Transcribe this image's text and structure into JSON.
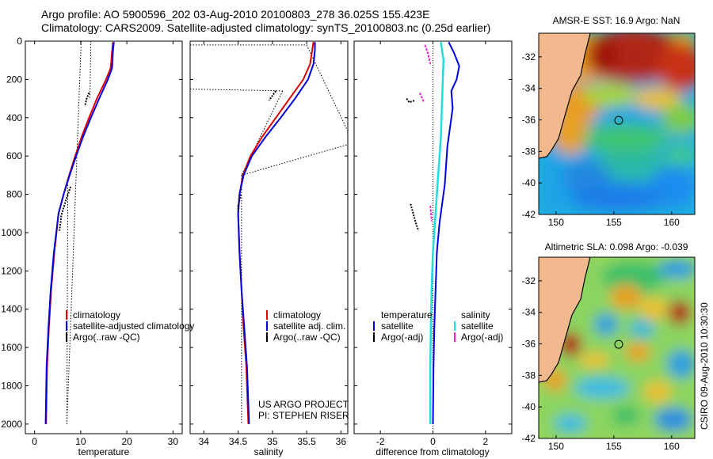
{
  "header": {
    "line1": "Argo profile: AO 5900596_202 03-Aug-2010 20100803_278 36.025S 155.423E",
    "line2": "Climatology: CARS2009. Satellite-adjusted climatology: synTS_20100803.nc (0.25d earlier)"
  },
  "colors": {
    "climatology": "#e00000",
    "satellite": "#0000dd",
    "argo": "#000000",
    "satellite_salinity": "#22dddd",
    "argo_salinity": "#ee22cc"
  },
  "chart_data": [
    {
      "type": "line",
      "id": "temperature",
      "xlabel": "temperature",
      "ylim": [
        2050,
        0
      ],
      "xlim": [
        -2,
        32
      ],
      "xticks": [
        0,
        10,
        20,
        30
      ],
      "yticks": [
        0,
        200,
        400,
        600,
        800,
        1000,
        1200,
        1400,
        1600,
        1800,
        2000
      ],
      "legend": [
        "climatology",
        "satellite-adjusted climatology",
        "Argo(..raw -QC)"
      ],
      "series": [
        {
          "name": "climatology",
          "x": [
            17.0,
            16.8,
            16.5,
            15.5,
            13.5,
            11.8,
            10.2,
            8.8,
            7.5,
            6.3,
            5.2,
            4.3,
            3.6,
            3.1,
            2.7,
            2.5
          ],
          "y": [
            5,
            50,
            140,
            200,
            300,
            400,
            500,
            600,
            700,
            800,
            900,
            1100,
            1300,
            1500,
            1700,
            2000
          ]
        },
        {
          "name": "satellite-adjusted climatology",
          "x": [
            17.2,
            17.0,
            16.8,
            15.9,
            14.0,
            12.2,
            10.5,
            9.0,
            7.6,
            6.3,
            5.2,
            4.2,
            3.5,
            3.0,
            2.6,
            2.4
          ],
          "y": [
            5,
            50,
            140,
            200,
            300,
            400,
            500,
            600,
            700,
            800,
            900,
            1100,
            1300,
            1500,
            1700,
            2000
          ]
        },
        {
          "name": "Argo(..raw -QC)",
          "x": [
            11.8,
            11.3,
            10.9
          ],
          "y": [
            270,
            300,
            340
          ]
        },
        {
          "name": "Argo(..raw -QC)",
          "x": [
            7.8,
            7.4,
            6.8,
            6.3,
            5.8,
            5.6,
            5.4
          ],
          "y": [
            760,
            790,
            830,
            870,
            910,
            950,
            990
          ]
        }
      ]
    },
    {
      "type": "line",
      "id": "salinity",
      "xlabel": "salinity",
      "ylim": [
        2050,
        0
      ],
      "xlim": [
        33.8,
        36.1
      ],
      "xticks": [
        34,
        34.5,
        35,
        35.5,
        36
      ],
      "legend": [
        "climatology",
        "satellite adj. clim.",
        "Argo(..raw -QC)"
      ],
      "annotation": [
        "US ARGO PROJECT",
        "PI: STEPHEN RISER"
      ],
      "series": [
        {
          "name": "climatology",
          "x": [
            35.6,
            35.58,
            35.55,
            35.45,
            35.25,
            35.05,
            34.85,
            34.68,
            34.57,
            34.52,
            34.5,
            34.52,
            34.55,
            34.58,
            34.62,
            34.65
          ],
          "y": [
            5,
            50,
            120,
            200,
            300,
            400,
            500,
            600,
            700,
            800,
            900,
            1100,
            1300,
            1500,
            1700,
            2000
          ]
        },
        {
          "name": "satellite adj. clim.",
          "x": [
            35.62,
            35.62,
            35.6,
            35.52,
            35.33,
            35.12,
            34.9,
            34.7,
            34.58,
            34.52,
            34.5,
            34.52,
            34.55,
            34.59,
            34.63,
            34.66
          ],
          "y": [
            5,
            50,
            120,
            200,
            300,
            400,
            500,
            600,
            700,
            800,
            900,
            1100,
            1300,
            1500,
            1700,
            2000
          ]
        },
        {
          "name": "Argo(..raw -QC)",
          "x": [
            35.05,
            35.0,
            34.95
          ],
          "y": [
            260,
            285,
            310
          ]
        },
        {
          "name": "Argo(..raw -QC)",
          "x": [
            34.54,
            34.52,
            34.5,
            34.5
          ],
          "y": [
            800,
            830,
            860,
            890
          ]
        }
      ]
    },
    {
      "type": "line",
      "id": "difference",
      "xlabel": "difference from climatology",
      "ylim": [
        2050,
        0
      ],
      "xlim": [
        -3,
        3
      ],
      "xticks": [
        -2,
        0,
        2
      ],
      "legend_left_title": "temperature",
      "legend_right_title": "salinity",
      "legend": [
        "satellite",
        "Argo(-adj)",
        "satellite",
        "Argo(-adj)"
      ],
      "series": [
        {
          "name": "satellite",
          "x": [
            0.6,
            0.8,
            1.0,
            0.9,
            0.7,
            0.75,
            0.65,
            0.55,
            0.5,
            0.45,
            0.35,
            0.25,
            0.15,
            0.1,
            0.05,
            0.02,
            0.0
          ],
          "y": [
            5,
            60,
            130,
            200,
            260,
            350,
            450,
            550,
            650,
            750,
            850,
            950,
            1100,
            1300,
            1500,
            1700,
            2000
          ]
        },
        {
          "name": "satellite",
          "x": [
            0.3,
            0.4,
            0.35,
            0.3,
            0.2,
            0.1,
            0.0,
            -0.05,
            -0.08,
            -0.1,
            -0.1
          ],
          "y": [
            5,
            100,
            300,
            500,
            700,
            900,
            1100,
            1300,
            1500,
            1700,
            2000
          ]
        },
        {
          "name": "Argo(-adj)",
          "x": [
            -1.0,
            -0.9,
            -0.7
          ],
          "y": [
            300,
            320,
            310
          ]
        },
        {
          "name": "Argo(-adj)",
          "x": [
            -0.85,
            -0.75,
            -0.65,
            -0.55
          ],
          "y": [
            850,
            900,
            950,
            990
          ]
        },
        {
          "name": "Argo(-adj)",
          "x": [
            -0.3,
            -0.2,
            -0.1
          ],
          "y": [
            20,
            60,
            120
          ]
        },
        {
          "name": "Argo(-adj)",
          "x": [
            -0.5,
            -0.4,
            -0.35
          ],
          "y": [
            270,
            300,
            320
          ]
        },
        {
          "name": "Argo(-adj)",
          "x": [
            -0.1,
            -0.05
          ],
          "y": [
            860,
            940
          ]
        }
      ]
    },
    {
      "type": "heatmap",
      "id": "sst-map",
      "title": "AMSR-E SST: 16.9 Argo: NaN",
      "xlim": [
        148.5,
        162
      ],
      "ylim": [
        -42,
        -30.5
      ],
      "xticks": [
        150,
        155,
        160
      ],
      "yticks": [
        -32,
        -34,
        -36,
        -38,
        -40,
        -42
      ],
      "marker": {
        "lon": 155.42,
        "lat": -36.03
      }
    },
    {
      "type": "heatmap",
      "id": "sla-map",
      "title": "Altimetric SLA: 0.098 Argo: -0.039",
      "xlim": [
        148.5,
        162
      ],
      "ylim": [
        -42,
        -30.5
      ],
      "xticks": [
        150,
        155,
        160
      ],
      "yticks": [
        -32,
        -34,
        -36,
        -38,
        -40,
        -42
      ],
      "marker": {
        "lon": 155.42,
        "lat": -36.03
      }
    }
  ],
  "side_label": "CSIRO 09-Aug-2010 10:30:30"
}
